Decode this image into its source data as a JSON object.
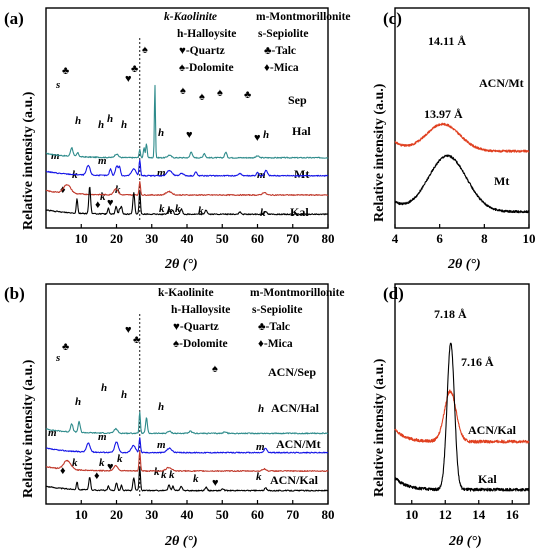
{
  "chart_data": [
    {
      "panel": "(a)",
      "type": "line",
      "xlabel": "2θ (°)",
      "ylabel": "Relative intensity (a.u.)",
      "xlim": [
        0,
        80
      ],
      "xticks": [
        10,
        20,
        30,
        40,
        50,
        60,
        70,
        80
      ],
      "legend": [
        "k-Kaolinite",
        "m-Montmorillonite",
        "h-Halloysite",
        "s-Sepiolite",
        "♥-Quartz",
        "♣-Talc",
        "♠-Dolomite",
        "♦-Mica"
      ],
      "series": [
        {
          "name": "Sep",
          "color": "#2e8b8b",
          "offset": 3.15,
          "base": 0.18,
          "peaks": [
            [
              7.3,
              0.5,
              0.35
            ],
            [
              9.0,
              0.22,
              0.3
            ],
            [
              20.0,
              0.2,
              0.5
            ],
            [
              26.6,
              0.45,
              0.2
            ],
            [
              27.8,
              0.55,
              0.2
            ],
            [
              28.5,
              0.8,
              0.2
            ],
            [
              30.9,
              4.2,
              0.15
            ],
            [
              35.0,
              0.15,
              0.5
            ],
            [
              41.2,
              0.35,
              0.3
            ],
            [
              44.9,
              0.25,
              0.3
            ],
            [
              51.0,
              0.32,
              0.3
            ],
            [
              60.0,
              0.1,
              0.4
            ]
          ]
        },
        {
          "name": "Hal",
          "color": "#1515e6",
          "offset": 2.15,
          "base": 0.15,
          "peaks": [
            [
              12.0,
              0.55,
              0.5
            ],
            [
              18.3,
              0.38,
              0.3
            ],
            [
              20.1,
              0.55,
              0.4
            ],
            [
              20.9,
              0.45,
              0.25
            ],
            [
              24.9,
              0.38,
              0.6
            ],
            [
              26.6,
              0.9,
              0.2
            ],
            [
              35.0,
              0.3,
              0.7
            ],
            [
              38.5,
              0.15,
              0.5
            ],
            [
              42.5,
              0.22,
              0.3
            ],
            [
              55.0,
              0.12,
              0.5
            ],
            [
              60.0,
              0.2,
              0.3
            ],
            [
              62.4,
              0.3,
              0.4
            ]
          ]
        },
        {
          "name": "Mt",
          "color": "#c0392b",
          "offset": 1.05,
          "base": 0.15,
          "peaks": [
            [
              6.0,
              0.5,
              1.0
            ],
            [
              19.8,
              0.35,
              0.6
            ],
            [
              26.6,
              0.75,
              0.2
            ],
            [
              34.9,
              0.2,
              0.8
            ],
            [
              61.9,
              0.15,
              0.5
            ]
          ]
        },
        {
          "name": "Kal",
          "color": "#000000",
          "offset": 0,
          "base": 0.1,
          "peaks": [
            [
              8.8,
              0.85,
              0.2
            ],
            [
              12.4,
              1.55,
              0.25
            ],
            [
              17.7,
              0.35,
              0.2
            ],
            [
              19.9,
              0.45,
              0.25
            ],
            [
              20.9,
              0.3,
              0.2
            ],
            [
              21.4,
              0.45,
              0.2
            ],
            [
              24.9,
              1.25,
              0.25
            ],
            [
              26.6,
              1.3,
              0.2
            ],
            [
              34.9,
              0.32,
              0.3
            ],
            [
              35.9,
              0.25,
              0.25
            ],
            [
              38.4,
              0.3,
              0.3
            ],
            [
              45.4,
              0.25,
              0.3
            ],
            [
              55.0,
              0.12,
              0.3
            ],
            [
              62.3,
              0.18,
              0.3
            ]
          ]
        }
      ]
    },
    {
      "panel": "(b)",
      "type": "line",
      "xlabel": "2θ (°)",
      "ylabel": "Relative intensity (a.u.)",
      "xlim": [
        0,
        80
      ],
      "xticks": [
        10,
        20,
        30,
        40,
        50,
        60,
        70,
        80
      ],
      "legend": [
        "k-Kaolinite",
        "m-Montmorillonite",
        "h-Halloysite",
        "s-Sepiolite",
        "♥-Quartz",
        "♣-Talc",
        "♠-Dolomite",
        "♦-Mica"
      ],
      "series": [
        {
          "name": "ACN/Sep",
          "color": "#2e8b8b",
          "offset": 3.2,
          "base": 0.15,
          "peaks": [
            [
              7.3,
              0.45,
              0.35
            ],
            [
              9.4,
              0.6,
              0.3
            ],
            [
              19.8,
              0.25,
              0.5
            ],
            [
              26.6,
              1.25,
              0.18
            ],
            [
              28.5,
              0.9,
              0.25
            ],
            [
              35.0,
              0.12,
              0.5
            ],
            [
              41.0,
              0.12,
              0.4
            ],
            [
              50.8,
              0.1,
              0.4
            ]
          ]
        },
        {
          "name": "ACN/Hal",
          "color": "#1515e6",
          "offset": 2.1,
          "base": 0.15,
          "peaks": [
            [
              12.0,
              0.5,
              0.5
            ],
            [
              20.0,
              0.6,
              0.5
            ],
            [
              24.8,
              0.4,
              0.6
            ],
            [
              26.6,
              0.85,
              0.2
            ],
            [
              35.0,
              0.25,
              0.7
            ],
            [
              62.3,
              0.25,
              0.4
            ]
          ]
        },
        {
          "name": "ACN/Mt",
          "color": "#c0392b",
          "offset": 1.05,
          "base": 0.15,
          "peaks": [
            [
              6.0,
              0.5,
              1.0
            ],
            [
              19.8,
              0.3,
              0.6
            ],
            [
              26.6,
              1.1,
              0.2
            ],
            [
              34.9,
              0.2,
              0.8
            ],
            [
              61.9,
              0.12,
              0.5
            ]
          ]
        },
        {
          "name": "ACN/Kal",
          "color": "#000000",
          "offset": 0,
          "base": 0.08,
          "peaks": [
            [
              8.8,
              0.45,
              0.2
            ],
            [
              12.4,
              0.75,
              0.25
            ],
            [
              17.7,
              0.25,
              0.2
            ],
            [
              20.0,
              0.45,
              0.25
            ],
            [
              21.4,
              0.3,
              0.2
            ],
            [
              24.9,
              0.75,
              0.25
            ],
            [
              26.6,
              1.35,
              0.2
            ],
            [
              34.9,
              0.3,
              0.3
            ],
            [
              36.0,
              0.25,
              0.25
            ],
            [
              38.4,
              0.25,
              0.3
            ],
            [
              45.4,
              0.2,
              0.3
            ],
            [
              50.1,
              0.1,
              0.3
            ],
            [
              62.3,
              0.15,
              0.3
            ]
          ]
        }
      ]
    },
    {
      "panel": "(c)",
      "type": "line",
      "xlabel": "2θ (°)",
      "ylabel": "Relative intensity (a.u.)",
      "xlim": [
        4,
        10
      ],
      "xticks": [
        4,
        6,
        8,
        10
      ],
      "annotations": [
        "14.11 Å",
        "13.97 Å"
      ],
      "series": [
        {
          "name": "ACN/Mt",
          "color": "#e04020",
          "offset": 1.45,
          "base": 0.35,
          "peaks": [
            [
              6.15,
              0.75,
              0.75
            ]
          ]
        },
        {
          "name": "Mt",
          "color": "#000000",
          "offset": 0,
          "base": 0.12,
          "peaks": [
            [
              6.35,
              1.55,
              0.85
            ]
          ]
        }
      ]
    },
    {
      "panel": "(d)",
      "type": "line",
      "xlabel": "2θ (°)",
      "ylabel": "Relative intensity (a.u.)",
      "xlim": [
        9,
        17
      ],
      "xticks": [
        10,
        12,
        14,
        16
      ],
      "annotations": [
        "7.18 Å",
        "7.16 Å"
      ],
      "series": [
        {
          "name": "ACN/Kal",
          "color": "#e04020",
          "offset": 1.0,
          "base": 0.05,
          "peaks": [
            [
              12.3,
              1.05,
              0.35
            ]
          ]
        },
        {
          "name": "Kal",
          "color": "#000000",
          "offset": 0,
          "base": 0.05,
          "peaks": [
            [
              12.33,
              3.05,
              0.22
            ]
          ]
        }
      ]
    }
  ],
  "panel_a": {
    "label": "(a)",
    "legend_k": "k-Kaolinite",
    "legend_m": "m-Montmorillonite",
    "legend_h": "h-Halloysite",
    "legend_s": "s-Sepiolite",
    "legend_q": "♥-Quartz",
    "legend_t": "♣-Talc",
    "legend_d": "♠-Dolomite",
    "legend_mi": "♦-Mica",
    "ylabel": "Relative intensity (a.u.)",
    "xlabel": "2θ (°)",
    "series_labels": [
      "Sep",
      "Hal",
      "Mt",
      "Kal"
    ]
  },
  "panel_b": {
    "label": "(b)",
    "legend_k": "k-Kaolinite",
    "legend_m": "m-Montmorillonite",
    "legend_h": "h-Halloysite",
    "legend_s": "s-Sepiolite",
    "legend_q": "♥-Quartz",
    "legend_t": "♣-Talc",
    "legend_d": "♠-Dolomite",
    "legend_mi": "♦-Mica",
    "ylabel": "Relative intensity (a.u.)",
    "xlabel": "2θ (°)",
    "series_labels": [
      "ACN/Sep",
      "ACN/Hal",
      "ACN/Mt",
      "ACN/Kal"
    ]
  },
  "panel_c": {
    "label": "(c)",
    "peak1": "14.11 Å",
    "peak2": "13.97 Å",
    "ylabel": "Relative intensity (a.u.)",
    "xlabel": "2θ (°)",
    "series_labels": [
      "ACN/Mt",
      "Mt"
    ]
  },
  "panel_d": {
    "label": "(d)",
    "peak1": "7.18 Å",
    "peak2": "7.16 Å",
    "ylabel": "Relative intensity (a.u.)",
    "xlabel": "2θ (°)",
    "series_labels": [
      "ACN/Kal",
      "Kal"
    ]
  },
  "markers": {
    "k": "k",
    "m": "m",
    "h": "h",
    "s": "s",
    "quartz": "♥",
    "talc": "♣",
    "dolomite": "♠",
    "mica": "♦"
  }
}
